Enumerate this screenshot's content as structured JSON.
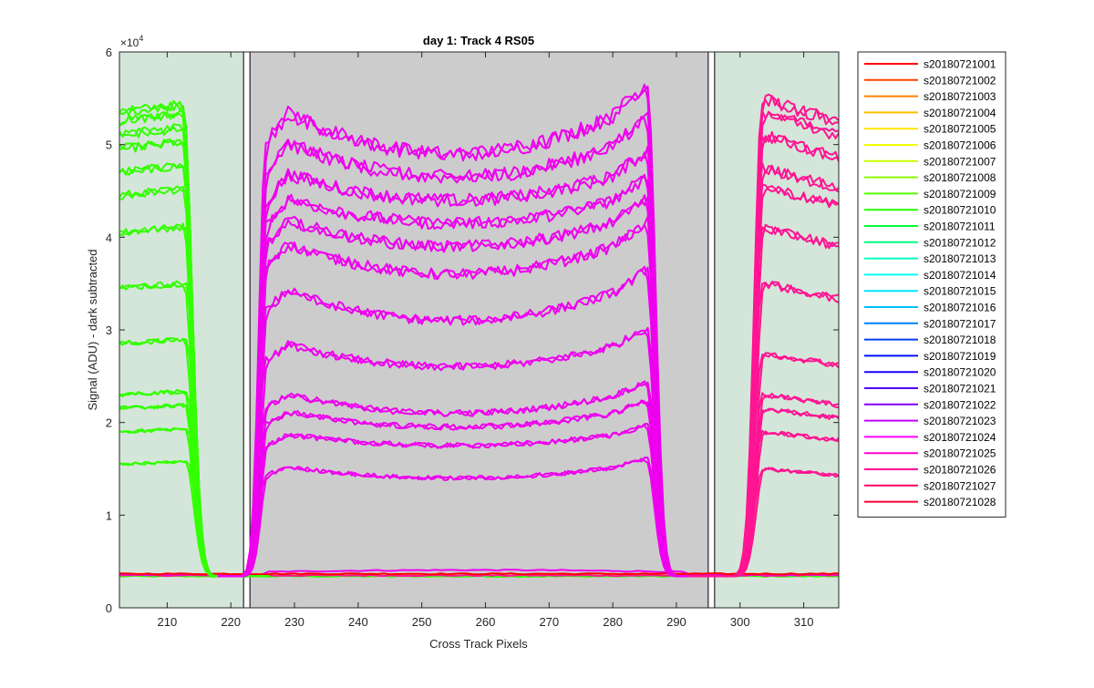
{
  "chart_data": {
    "type": "line",
    "title": "day 1: Track 4  RS05",
    "xlabel": "Cross Track Pixels",
    "ylabel": "Signal (ADU) - dark subtracted",
    "ylabel_exponent": "×10",
    "ylabel_exponent_power": "4",
    "xlim": [
      202.5,
      315.5
    ],
    "ylim": [
      0,
      60000
    ],
    "x_ticks": [
      210,
      220,
      230,
      240,
      250,
      260,
      270,
      280,
      290,
      300,
      310
    ],
    "y_ticks": [
      0,
      1,
      2,
      3,
      4,
      5,
      6
    ],
    "grid": false,
    "legend_position": "outside-right",
    "regions": [
      {
        "kind": "shaded",
        "x0": 202.5,
        "x1": 222,
        "color": "#d4e6d9"
      },
      {
        "kind": "shaded",
        "x0": 223,
        "x1": 295,
        "color": "#cccccc"
      },
      {
        "kind": "shaded",
        "x0": 296,
        "x1": 315.5,
        "color": "#d4e6d9"
      },
      {
        "kind": "marker-box",
        "x0": 222,
        "x1": 223
      },
      {
        "kind": "marker-box",
        "x0": 295,
        "x1": 296
      }
    ],
    "left_group_color": "#33ff00",
    "center_group_color": "#ee00ee",
    "right_group_color": "#ff1493",
    "left_levels": [
      53500,
      52500,
      51000,
      49500,
      47000,
      44500,
      40500,
      34500,
      28500,
      23000,
      21500,
      19000,
      15500
    ],
    "center_edge_levels": [
      54500,
      51000,
      47500,
      44800,
      42500,
      40000,
      35000,
      29000,
      23500,
      21500,
      19000,
      15500
    ],
    "center_mid_levels": [
      49000,
      46500,
      44000,
      41500,
      39000,
      36000,
      31000,
      26000,
      21000,
      19500,
      17500,
      14000
    ],
    "right_levels": [
      55000,
      53500,
      51000,
      47500,
      45500,
      41000,
      35000,
      27500,
      23000,
      21500,
      19000,
      15000
    ],
    "baseline_level": 3400,
    "series": [
      {
        "name": "s20180721001",
        "color": "#ff0000"
      },
      {
        "name": "s20180721002",
        "color": "#ff4000"
      },
      {
        "name": "s20180721003",
        "color": "#ff8000"
      },
      {
        "name": "s20180721004",
        "color": "#ffbf00"
      },
      {
        "name": "s20180721005",
        "color": "#ffe600"
      },
      {
        "name": "s20180721006",
        "color": "#f0ff00"
      },
      {
        "name": "s20180721007",
        "color": "#c8ff00"
      },
      {
        "name": "s20180721008",
        "color": "#8cff00"
      },
      {
        "name": "s20180721009",
        "color": "#55ff00"
      },
      {
        "name": "s20180721010",
        "color": "#22ff00"
      },
      {
        "name": "s20180721011",
        "color": "#00ff33"
      },
      {
        "name": "s20180721012",
        "color": "#00ff80"
      },
      {
        "name": "s20180721013",
        "color": "#00ffbf"
      },
      {
        "name": "s20180721014",
        "color": "#00fff0"
      },
      {
        "name": "s20180721015",
        "color": "#00e6ff"
      },
      {
        "name": "s20180721016",
        "color": "#00bfff"
      },
      {
        "name": "s20180721017",
        "color": "#0080ff"
      },
      {
        "name": "s20180721018",
        "color": "#0040ff"
      },
      {
        "name": "s20180721019",
        "color": "#0010ff"
      },
      {
        "name": "s20180721020",
        "color": "#2000ff"
      },
      {
        "name": "s20180721021",
        "color": "#5000ff"
      },
      {
        "name": "s20180721022",
        "color": "#8000ff"
      },
      {
        "name": "s20180721023",
        "color": "#c000ff"
      },
      {
        "name": "s20180721024",
        "color": "#ff00ff"
      },
      {
        "name": "s20180721025",
        "color": "#ff00cc"
      },
      {
        "name": "s20180721026",
        "color": "#ff0099"
      },
      {
        "name": "s20180721027",
        "color": "#ff0066"
      },
      {
        "name": "s20180721028",
        "color": "#ff0033"
      }
    ]
  }
}
